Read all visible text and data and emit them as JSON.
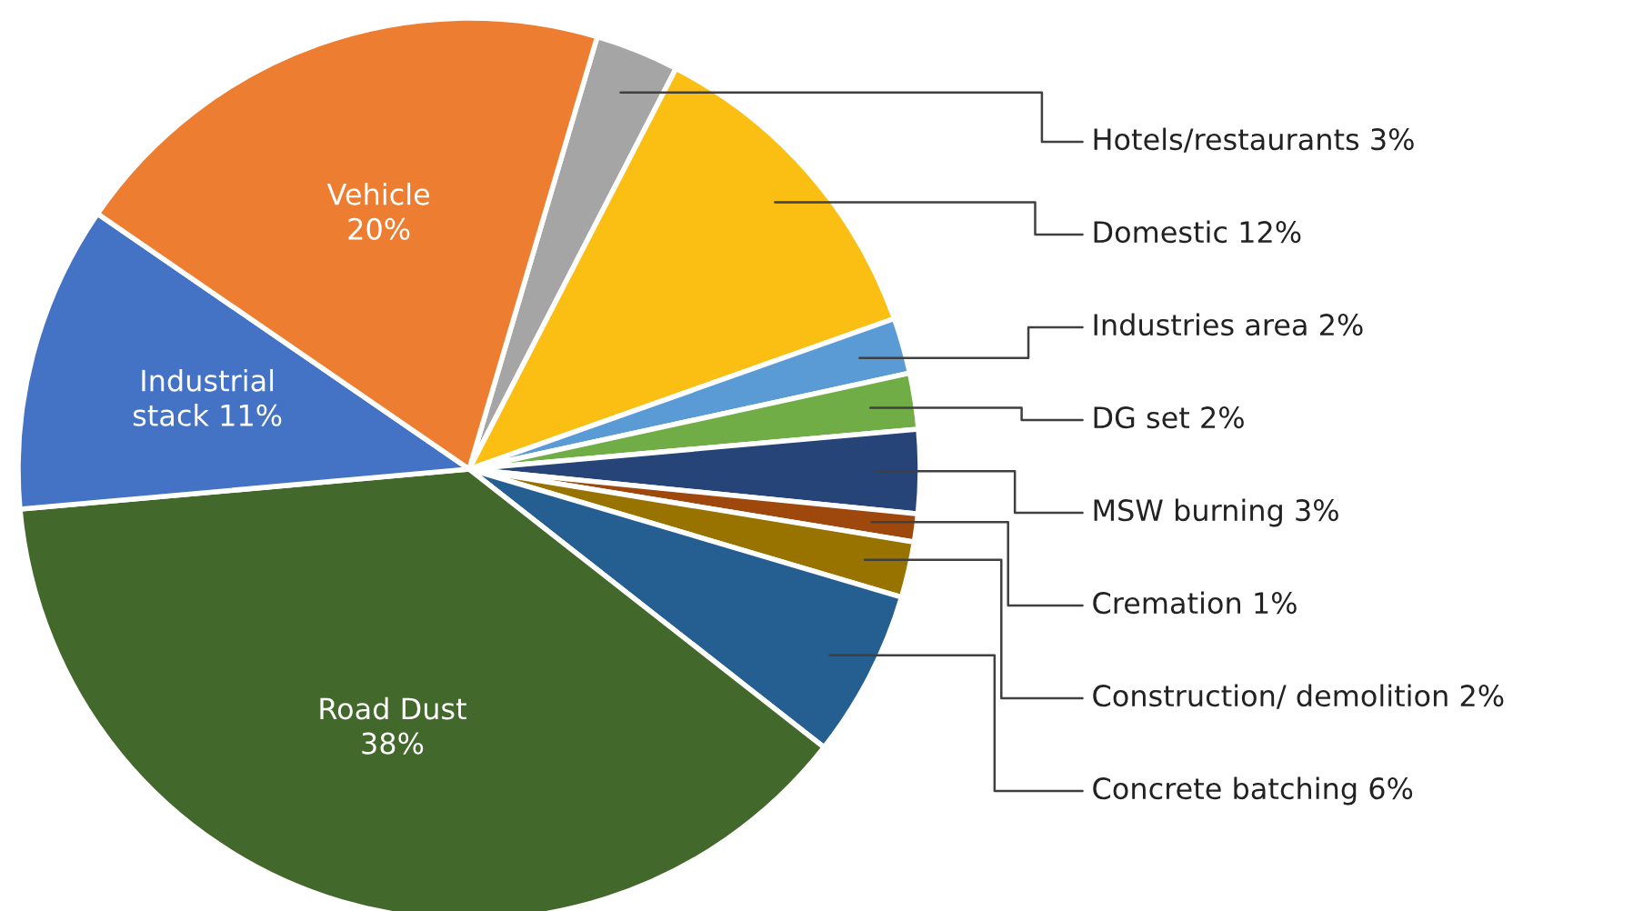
{
  "chart_data": {
    "type": "pie",
    "categories": [
      "Hotels/restaurants",
      "Domestic",
      "Industries area",
      "DG set",
      "MSW burning",
      "Cremation",
      "Construction/ demolition",
      "Concrete batching",
      "Road Dust",
      "Industrial stack",
      "Vehicle"
    ],
    "values": [
      3,
      12,
      2,
      2,
      3,
      1,
      2,
      6,
      38,
      11,
      20
    ],
    "colors": [
      "#a5a5a5",
      "#fbbf14",
      "#5b9bd5",
      "#70ad47",
      "#264478",
      "#9e480e",
      "#997300",
      "#255e91",
      "#43682b",
      "#4472c4",
      "#ed7d31"
    ],
    "value_labels": [
      "3%",
      "12%",
      "2%",
      "2%",
      "3%",
      "1%",
      "2%",
      "6%",
      "38%",
      "11%",
      "20%"
    ]
  }
}
